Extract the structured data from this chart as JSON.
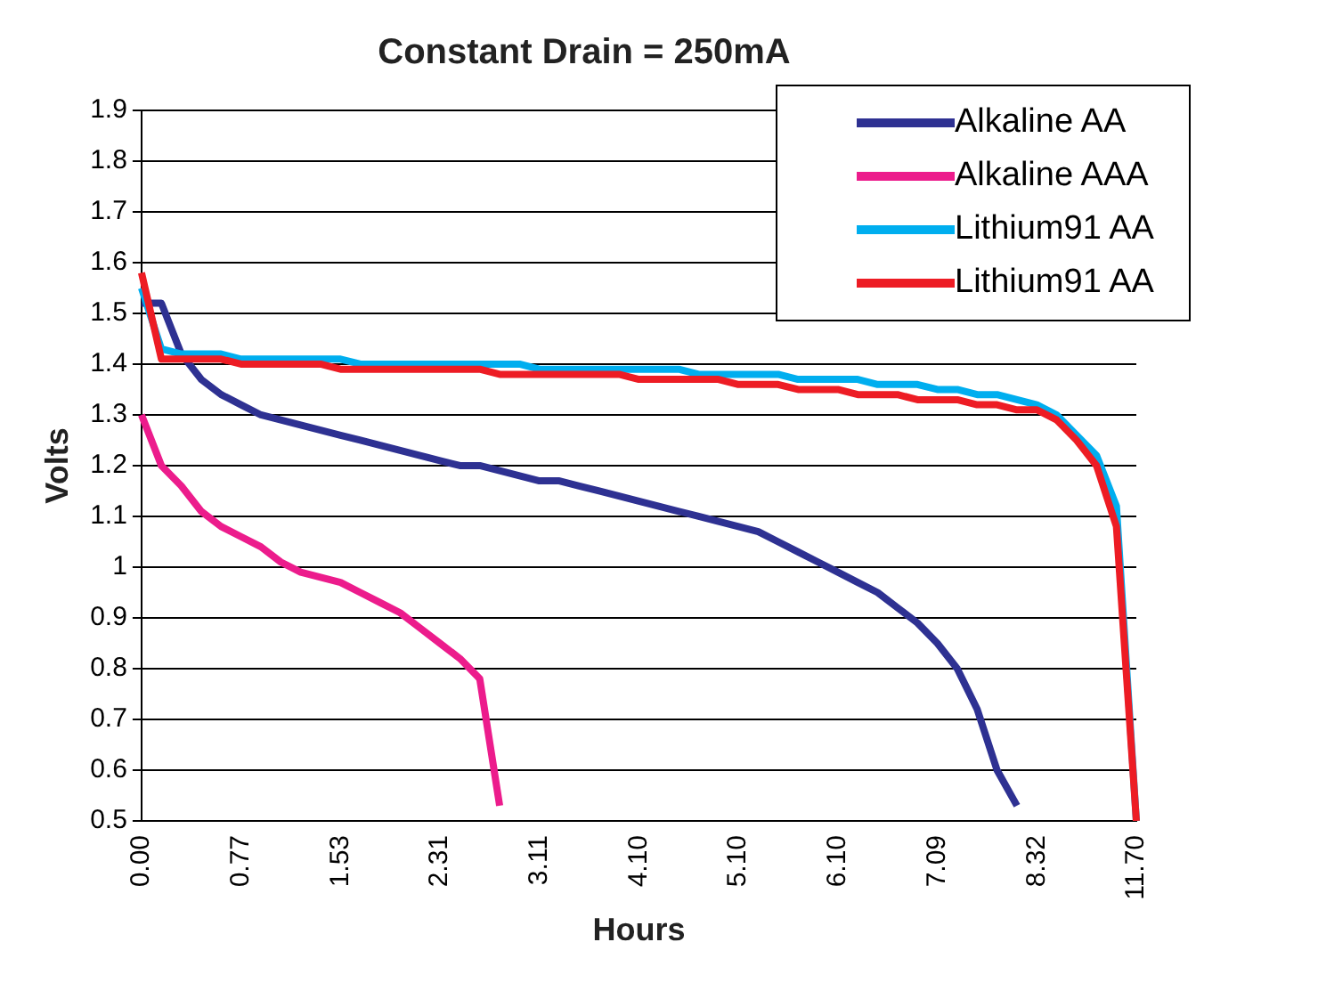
{
  "chart_data": {
    "type": "line",
    "title": "Constant Drain = 250mA",
    "xlabel": "Hours",
    "ylabel": "Volts",
    "categories": [
      "0.00",
      null,
      null,
      null,
      null,
      "0.77",
      null,
      null,
      null,
      null,
      "1.53",
      null,
      null,
      null,
      null,
      "2.31",
      null,
      null,
      null,
      null,
      "3.11",
      null,
      null,
      null,
      null,
      "4.10",
      null,
      null,
      null,
      null,
      "5.10",
      null,
      null,
      null,
      null,
      "6.10",
      null,
      null,
      null,
      null,
      "7.09",
      null,
      null,
      null,
      null,
      "8.32",
      null,
      null,
      null,
      null,
      "11.70"
    ],
    "ylim": [
      0.5,
      1.9
    ],
    "yticks": [
      0.5,
      0.6,
      0.7,
      0.8,
      0.9,
      1,
      1.1,
      1.2,
      1.3,
      1.4,
      1.5,
      1.6,
      1.7,
      1.8,
      1.9
    ],
    "grid": "y",
    "legend": "top right",
    "marker": "none",
    "line_style": "solid",
    "series": [
      {
        "name": "Alkaline AA",
        "color": "#2e3192",
        "values": [
          1.52,
          1.52,
          1.42,
          1.37,
          1.34,
          1.32,
          1.3,
          1.29,
          1.28,
          1.27,
          1.26,
          1.25,
          1.24,
          1.23,
          1.22,
          1.21,
          1.2,
          1.2,
          1.19,
          1.18,
          1.17,
          1.17,
          1.16,
          1.15,
          1.14,
          1.13,
          1.12,
          1.11,
          1.1,
          1.09,
          1.08,
          1.07,
          1.05,
          1.03,
          1.01,
          0.99,
          0.97,
          0.95,
          0.92,
          0.89,
          0.85,
          0.8,
          0.72,
          0.6,
          0.53,
          null,
          null,
          null,
          null,
          null,
          null
        ]
      },
      {
        "name": "Alkaline AAA",
        "color": "#ec1c8c",
        "values": [
          1.3,
          1.2,
          1.16,
          1.11,
          1.08,
          1.06,
          1.04,
          1.01,
          0.99,
          0.98,
          0.97,
          0.95,
          0.93,
          0.91,
          0.88,
          0.85,
          0.82,
          0.78,
          0.53,
          null,
          null,
          null,
          null,
          null,
          null,
          null,
          null,
          null,
          null,
          null,
          null,
          null,
          null,
          null,
          null,
          null,
          null,
          null,
          null,
          null,
          null,
          null,
          null,
          null,
          null,
          null,
          null,
          null,
          null,
          null,
          null
        ]
      },
      {
        "name": "Lithium91 AA",
        "color": "#00aeef",
        "values": [
          1.55,
          1.43,
          1.42,
          1.42,
          1.42,
          1.41,
          1.41,
          1.41,
          1.41,
          1.41,
          1.41,
          1.4,
          1.4,
          1.4,
          1.4,
          1.4,
          1.4,
          1.4,
          1.4,
          1.4,
          1.39,
          1.39,
          1.39,
          1.39,
          1.39,
          1.39,
          1.39,
          1.39,
          1.38,
          1.38,
          1.38,
          1.38,
          1.38,
          1.37,
          1.37,
          1.37,
          1.37,
          1.36,
          1.36,
          1.36,
          1.35,
          1.35,
          1.34,
          1.34,
          1.33,
          1.32,
          1.3,
          1.26,
          1.22,
          1.12,
          0.5
        ]
      },
      {
        "name": "Lithium91 AA",
        "color": "#ed1c24",
        "values": [
          1.58,
          1.41,
          1.41,
          1.41,
          1.41,
          1.4,
          1.4,
          1.4,
          1.4,
          1.4,
          1.39,
          1.39,
          1.39,
          1.39,
          1.39,
          1.39,
          1.39,
          1.39,
          1.38,
          1.38,
          1.38,
          1.38,
          1.38,
          1.38,
          1.38,
          1.37,
          1.37,
          1.37,
          1.37,
          1.37,
          1.36,
          1.36,
          1.36,
          1.35,
          1.35,
          1.35,
          1.34,
          1.34,
          1.34,
          1.33,
          1.33,
          1.33,
          1.32,
          1.32,
          1.31,
          1.31,
          1.29,
          1.25,
          1.2,
          1.08,
          0.5
        ]
      }
    ]
  }
}
